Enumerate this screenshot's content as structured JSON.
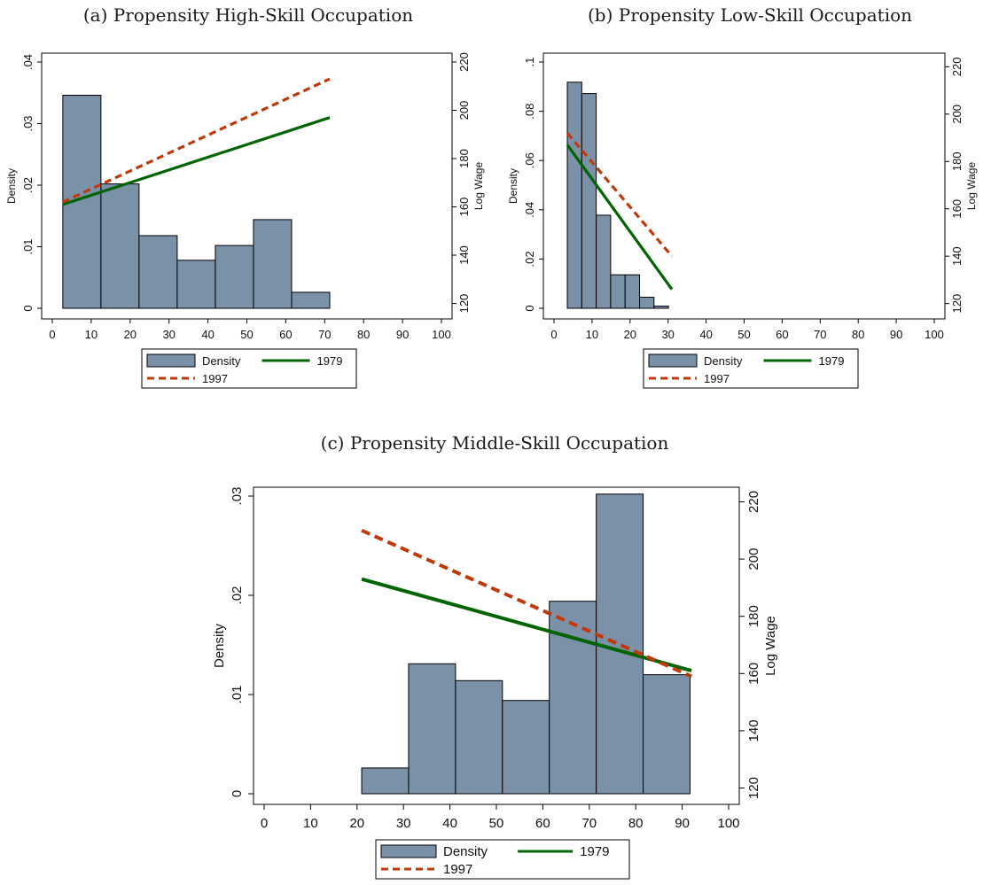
{
  "chart_data": [
    {
      "type": "bar",
      "title": "(a) Propensity High-Skill Occupation",
      "ylabel": "Density",
      "y2label": "Log Wage",
      "xlim": [
        0,
        100
      ],
      "ylim": [
        0,
        0.04
      ],
      "y2lim": [
        118,
        220
      ],
      "xticks": [
        "0",
        "10",
        "20",
        "30",
        "40",
        "50",
        "60",
        "70",
        "80",
        "90",
        "100"
      ],
      "yticks": [
        "0",
        ".01",
        ".02",
        ".03",
        ".04"
      ],
      "y2ticks": [
        "120",
        "140",
        "160",
        "180",
        "200",
        "220"
      ],
      "bins": [
        {
          "x0": 2.7,
          "x1": 12.5,
          "density": 0.0346
        },
        {
          "x0": 12.5,
          "x1": 22.3,
          "density": 0.0202
        },
        {
          "x0": 22.3,
          "x1": 32.1,
          "density": 0.0118
        },
        {
          "x0": 32.1,
          "x1": 41.9,
          "density": 0.0078
        },
        {
          "x0": 41.9,
          "x1": 51.7,
          "density": 0.0102
        },
        {
          "x0": 51.7,
          "x1": 61.5,
          "density": 0.0144
        },
        {
          "x0": 61.5,
          "x1": 71.3,
          "density": 0.0026
        }
      ],
      "series": [
        {
          "name": "1979",
          "x": [
            2.7,
            71.3
          ],
          "y": [
            161,
            197
          ],
          "color": "#006400",
          "dash": "solid"
        },
        {
          "name": "1997",
          "x": [
            2.7,
            71.3
          ],
          "y": [
            162,
            213
          ],
          "color": "#c0390b",
          "dash": "dash"
        }
      ],
      "legend": [
        {
          "label": "Density",
          "kind": "box"
        },
        {
          "label": "1979",
          "kind": "solid",
          "color": "#006400"
        },
        {
          "label": "1997",
          "kind": "dash",
          "color": "#c0390b"
        }
      ],
      "legend_position": "bottom",
      "colors": {
        "bar": "#7b91a8"
      }
    },
    {
      "type": "bar",
      "title": "(b) Propensity Low-Skill Occupation",
      "ylabel": "Density",
      "y2label": "Log Wage",
      "xlim": [
        0,
        100
      ],
      "ylim": [
        0,
        0.1
      ],
      "y2lim": [
        118,
        222
      ],
      "xticks": [
        "0",
        "10",
        "20",
        "30",
        "40",
        "50",
        "60",
        "70",
        "80",
        "90",
        "100"
      ],
      "yticks": [
        "0",
        ".02",
        ".04",
        ".06",
        ".08",
        ".1"
      ],
      "y2ticks": [
        "120",
        "140",
        "160",
        "180",
        "200",
        "220"
      ],
      "bins": [
        {
          "x0": 3.5,
          "x1": 7.3,
          "density": 0.0918
        },
        {
          "x0": 7.3,
          "x1": 11.1,
          "density": 0.0872
        },
        {
          "x0": 11.1,
          "x1": 14.9,
          "density": 0.0378
        },
        {
          "x0": 14.9,
          "x1": 18.7,
          "density": 0.0136
        },
        {
          "x0": 18.7,
          "x1": 22.5,
          "density": 0.0136
        },
        {
          "x0": 22.5,
          "x1": 26.3,
          "density": 0.0045
        },
        {
          "x0": 26.3,
          "x1": 30.1,
          "density": 0.0009
        }
      ],
      "series": [
        {
          "name": "1979",
          "x": [
            3.5,
            31
          ],
          "y": [
            187,
            126
          ],
          "color": "#006400",
          "dash": "solid"
        },
        {
          "name": "1997",
          "x": [
            3.5,
            31
          ],
          "y": [
            192,
            140
          ],
          "color": "#c0390b",
          "dash": "dash"
        }
      ],
      "legend": [
        {
          "label": "Density",
          "kind": "box"
        },
        {
          "label": "1979",
          "kind": "solid",
          "color": "#006400"
        },
        {
          "label": "1997",
          "kind": "dash",
          "color": "#c0390b"
        }
      ],
      "legend_position": "bottom",
      "colors": {
        "bar": "#7b91a8"
      }
    },
    {
      "type": "bar",
      "title": "(c) Propensity Middle-Skill Occupation",
      "ylabel": "Density",
      "y2label": "Log Wage",
      "xlim": [
        0,
        100
      ],
      "ylim": [
        0,
        0.03
      ],
      "y2lim": [
        118,
        222
      ],
      "xticks": [
        "0",
        "10",
        "20",
        "30",
        "40",
        "50",
        "60",
        "70",
        "80",
        "90",
        "100"
      ],
      "yticks": [
        "0",
        ".01",
        ".02",
        ".03"
      ],
      "y2ticks": [
        "120",
        "140",
        "160",
        "180",
        "200",
        "220"
      ],
      "bins": [
        {
          "x0": 21,
          "x1": 31.1,
          "density": 0.0026
        },
        {
          "x0": 31.1,
          "x1": 41.2,
          "density": 0.0131
        },
        {
          "x0": 41.2,
          "x1": 51.3,
          "density": 0.0114
        },
        {
          "x0": 51.3,
          "x1": 61.4,
          "density": 0.0094
        },
        {
          "x0": 61.4,
          "x1": 71.5,
          "density": 0.0194
        },
        {
          "x0": 71.5,
          "x1": 81.6,
          "density": 0.0302
        },
        {
          "x0": 81.6,
          "x1": 91.7,
          "density": 0.012
        }
      ],
      "series": [
        {
          "name": "1979",
          "x": [
            21,
            92
          ],
          "y": [
            193,
            161
          ],
          "color": "#006400",
          "dash": "solid"
        },
        {
          "name": "1997",
          "x": [
            21,
            92
          ],
          "y": [
            210,
            159
          ],
          "color": "#c0390b",
          "dash": "dash"
        }
      ],
      "legend": [
        {
          "label": "Density",
          "kind": "box"
        },
        {
          "label": "1979",
          "kind": "solid",
          "color": "#006400"
        },
        {
          "label": "1997",
          "kind": "dash",
          "color": "#c0390b"
        }
      ],
      "legend_position": "bottom",
      "colors": {
        "bar": "#7b91a8"
      }
    }
  ]
}
